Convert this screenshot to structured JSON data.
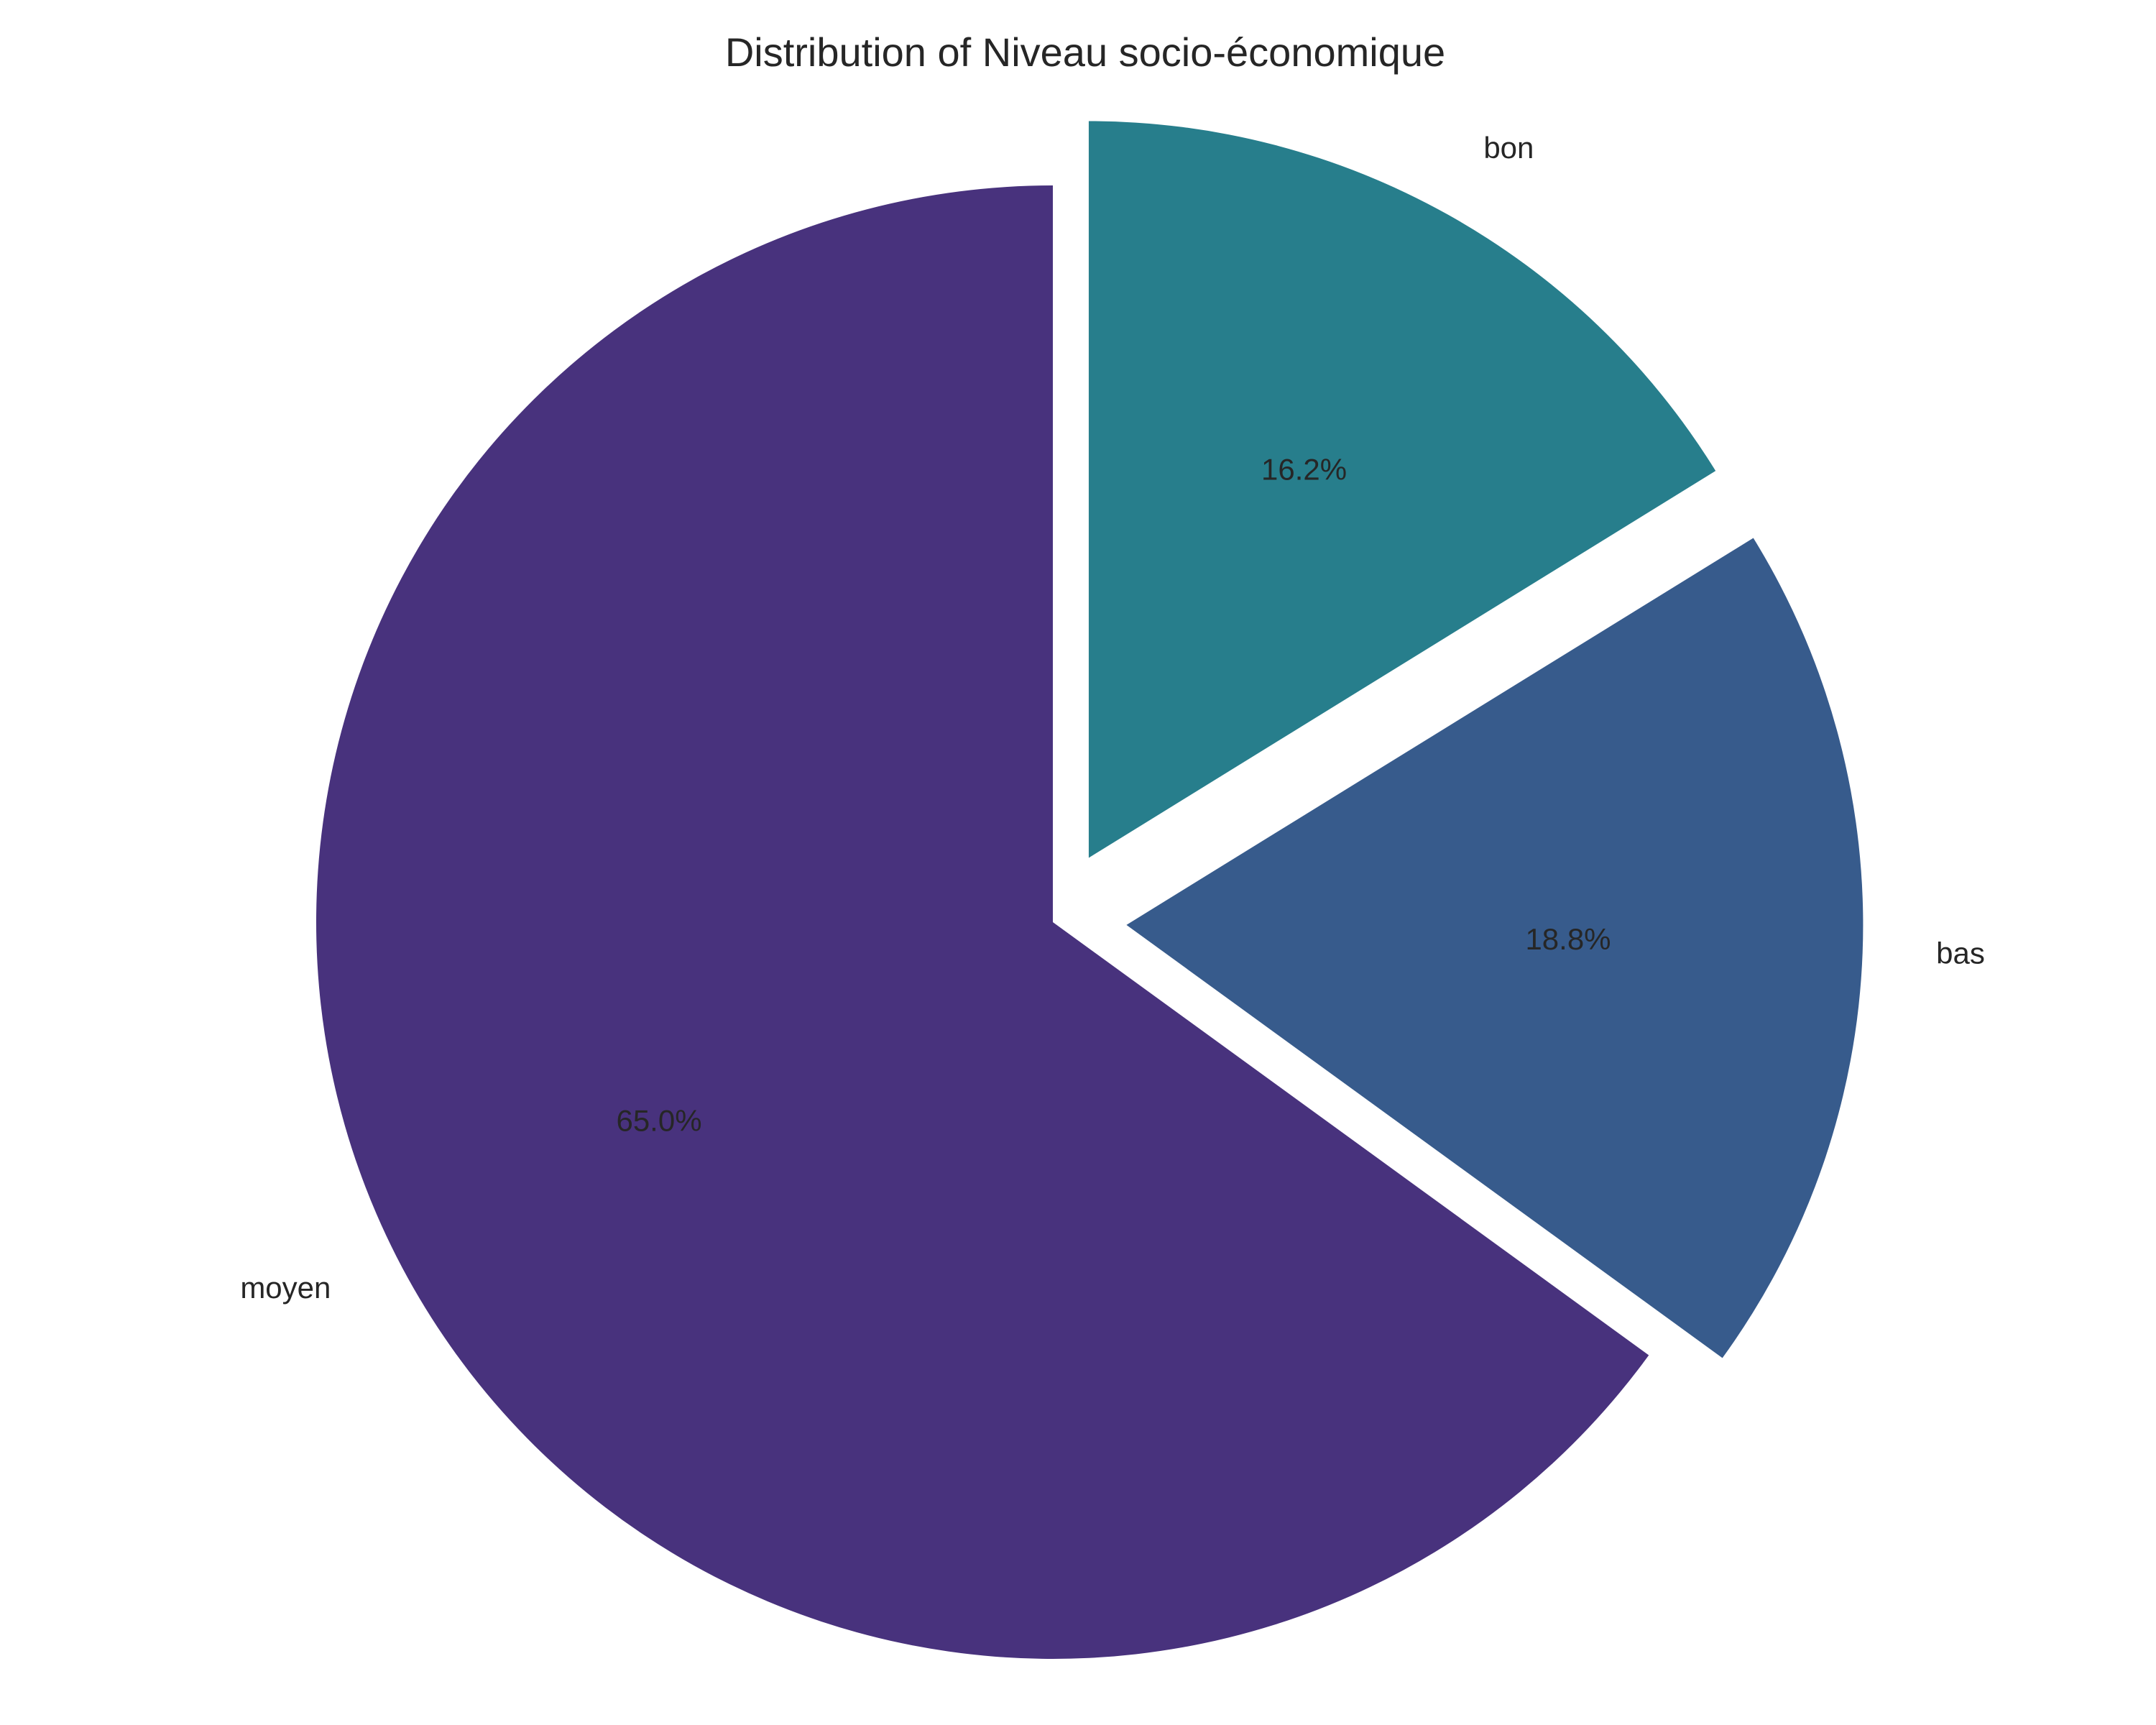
{
  "chart_data": {
    "type": "pie",
    "title": "Distribution of Niveau socio-économique",
    "start_angle_deg": 90,
    "direction": "counterclockwise",
    "slices": [
      {
        "label": "moyen",
        "value": 65.0,
        "pct_text": "65.0%",
        "color": "#48327d",
        "explode": 0.0
      },
      {
        "label": "bas",
        "value": 18.8,
        "pct_text": "18.8%",
        "color": "#375b8c",
        "explode": 0.1
      },
      {
        "label": "bon",
        "value": 16.2,
        "pct_text": "16.2%",
        "color": "#277e8c",
        "explode": 0.1
      }
    ],
    "legend": "none"
  }
}
